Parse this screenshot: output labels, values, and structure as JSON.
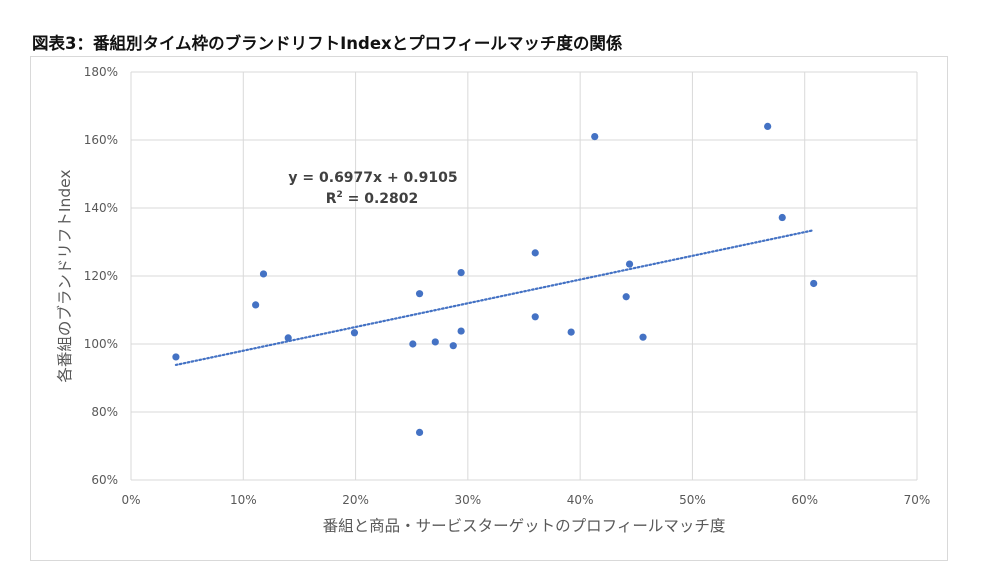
{
  "figure_title": "図表3：番組別タイム枠のブランドリフトIndexとプロフィールマッチ度の関係",
  "chart_data": {
    "type": "scatter",
    "xlabel": "番組と商品・サービスターゲットのプロフィールマッチ度",
    "ylabel": "各番組のブランドリフトIndex",
    "xlim": [
      0,
      0.7
    ],
    "ylim": [
      0.6,
      1.8
    ],
    "x_ticks": [
      0,
      0.1,
      0.2,
      0.3,
      0.4,
      0.5,
      0.6,
      0.7
    ],
    "x_tick_labels": [
      "0%",
      "10%",
      "20%",
      "30%",
      "40%",
      "50%",
      "60%",
      "70%"
    ],
    "y_ticks": [
      0.6,
      0.8,
      1.0,
      1.2,
      1.4,
      1.6,
      1.8
    ],
    "y_tick_labels": [
      "60%",
      "80%",
      "100%",
      "120%",
      "140%",
      "160%",
      "180%"
    ],
    "grid": true,
    "legend": "none",
    "points": [
      {
        "x": 0.04,
        "y": 0.962
      },
      {
        "x": 0.111,
        "y": 1.115
      },
      {
        "x": 0.118,
        "y": 1.206
      },
      {
        "x": 0.14,
        "y": 1.018
      },
      {
        "x": 0.199,
        "y": 1.033
      },
      {
        "x": 0.251,
        "y": 1.0
      },
      {
        "x": 0.257,
        "y": 1.148
      },
      {
        "x": 0.257,
        "y": 0.74
      },
      {
        "x": 0.271,
        "y": 1.006
      },
      {
        "x": 0.287,
        "y": 0.995
      },
      {
        "x": 0.294,
        "y": 1.21
      },
      {
        "x": 0.294,
        "y": 1.038
      },
      {
        "x": 0.36,
        "y": 1.268
      },
      {
        "x": 0.36,
        "y": 1.08
      },
      {
        "x": 0.392,
        "y": 1.035
      },
      {
        "x": 0.413,
        "y": 1.61
      },
      {
        "x": 0.441,
        "y": 1.139
      },
      {
        "x": 0.444,
        "y": 1.235
      },
      {
        "x": 0.456,
        "y": 1.02
      },
      {
        "x": 0.567,
        "y": 1.64
      },
      {
        "x": 0.58,
        "y": 1.372
      },
      {
        "x": 0.608,
        "y": 1.178
      }
    ],
    "trendline": {
      "type": "linear",
      "slope": 0.6977,
      "intercept": 0.9105,
      "x_range": [
        0.04,
        0.608
      ],
      "style": "dotted",
      "equation_text": "y = 0.6977x + 0.9105",
      "r2_prefix": "R",
      "r2_superscript": "2",
      "r2_suffix": " = 0.2802"
    },
    "colors": {
      "marker": "#4472c4",
      "trendline": "#4472c4",
      "grid": "#d9d9d9",
      "axis_text": "#595959",
      "equation_text": "#404040"
    }
  }
}
